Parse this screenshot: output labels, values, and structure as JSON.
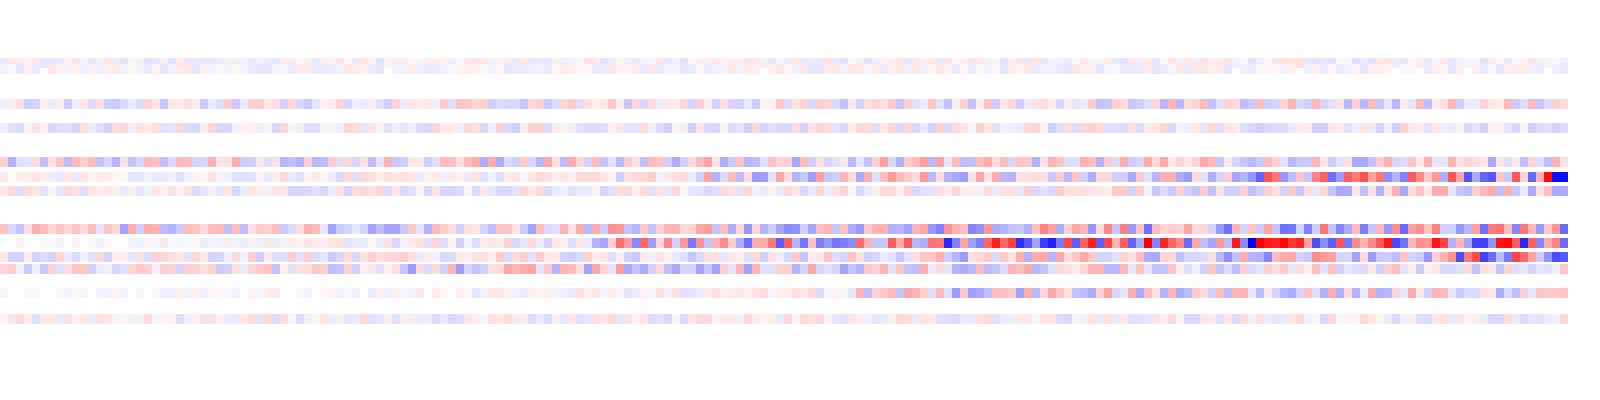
{
  "chart_data": {
    "type": "heatmap",
    "title": "",
    "xlabel": "",
    "ylabel": "",
    "colormap": {
      "negative": "#0000ff",
      "zero": "#ffffff",
      "positive": "#ff0000"
    },
    "value_range": [
      -1,
      1
    ],
    "grid": false,
    "legend": "none",
    "columns": 196,
    "rows": [
      {
        "name": "",
        "ramps": [
          [
            0,
            0.12
          ],
          [
            196,
            0.14
          ]
        ],
        "spikes": []
      },
      {
        "name": "",
        "ramps": [
          [
            0,
            0.1
          ],
          [
            196,
            0.12
          ]
        ],
        "spikes": []
      },
      {
        "name": "",
        "ramps": [
          [
            0,
            0.22
          ],
          [
            101,
            0.25
          ],
          [
            132,
            0.3
          ],
          [
            196,
            0.25
          ]
        ],
        "spikes": []
      },
      {
        "name": "",
        "ramps": [
          [
            0,
            0.18
          ],
          [
            196,
            0.22
          ]
        ],
        "spikes": []
      },
      {
        "name": "",
        "ramps": [
          [
            0,
            0.32
          ],
          [
            86,
            0.4
          ],
          [
            122,
            0.35
          ],
          [
            196,
            0.3
          ]
        ],
        "spikes": []
      },
      {
        "name": "",
        "ramps": [
          [
            0,
            0.1
          ],
          [
            86,
            0.45
          ],
          [
            124,
            0.3
          ],
          [
            156,
            0.7
          ],
          [
            196,
            0.6
          ]
        ],
        "spikes": [
          [
            193,
            0.95
          ],
          [
            194,
            0.95
          ],
          [
            195,
            0.95
          ]
        ]
      },
      {
        "name": "",
        "ramps": [
          [
            0,
            0.16
          ],
          [
            124,
            0.2
          ],
          [
            154,
            0.35
          ],
          [
            196,
            0.3
          ]
        ],
        "spikes": []
      },
      {
        "name": "",
        "ramps": [
          [
            0,
            0.35
          ],
          [
            73,
            0.45
          ],
          [
            112,
            0.5
          ],
          [
            142,
            0.6
          ],
          [
            196,
            0.6
          ]
        ],
        "spikes": []
      },
      {
        "name": "",
        "ramps": [
          [
            0,
            0.05
          ],
          [
            73,
            0.6
          ],
          [
            112,
            0.9
          ],
          [
            142,
            1.0
          ],
          [
            177,
            1.0
          ],
          [
            196,
            0.9
          ]
        ],
        "spikes": []
      },
      {
        "name": "",
        "ramps": [
          [
            0,
            0.18
          ],
          [
            115,
            0.4
          ],
          [
            145,
            0.45
          ],
          [
            178,
            0.75
          ],
          [
            196,
            0.7
          ]
        ],
        "spikes": []
      },
      {
        "name": "",
        "ramps": [
          [
            0,
            0.22
          ],
          [
            48,
            0.4
          ],
          [
            106,
            0.35
          ],
          [
            140,
            0.25
          ],
          [
            196,
            0.25
          ]
        ],
        "spikes": []
      },
      {
        "name": "",
        "ramps": [
          [
            0,
            0.05
          ],
          [
            106,
            0.4
          ],
          [
            140,
            0.35
          ],
          [
            196,
            0.3
          ]
        ],
        "spikes": []
      },
      {
        "name": "",
        "ramps": [
          [
            0,
            0.15
          ],
          [
            196,
            0.2
          ]
        ],
        "spikes": []
      }
    ]
  }
}
